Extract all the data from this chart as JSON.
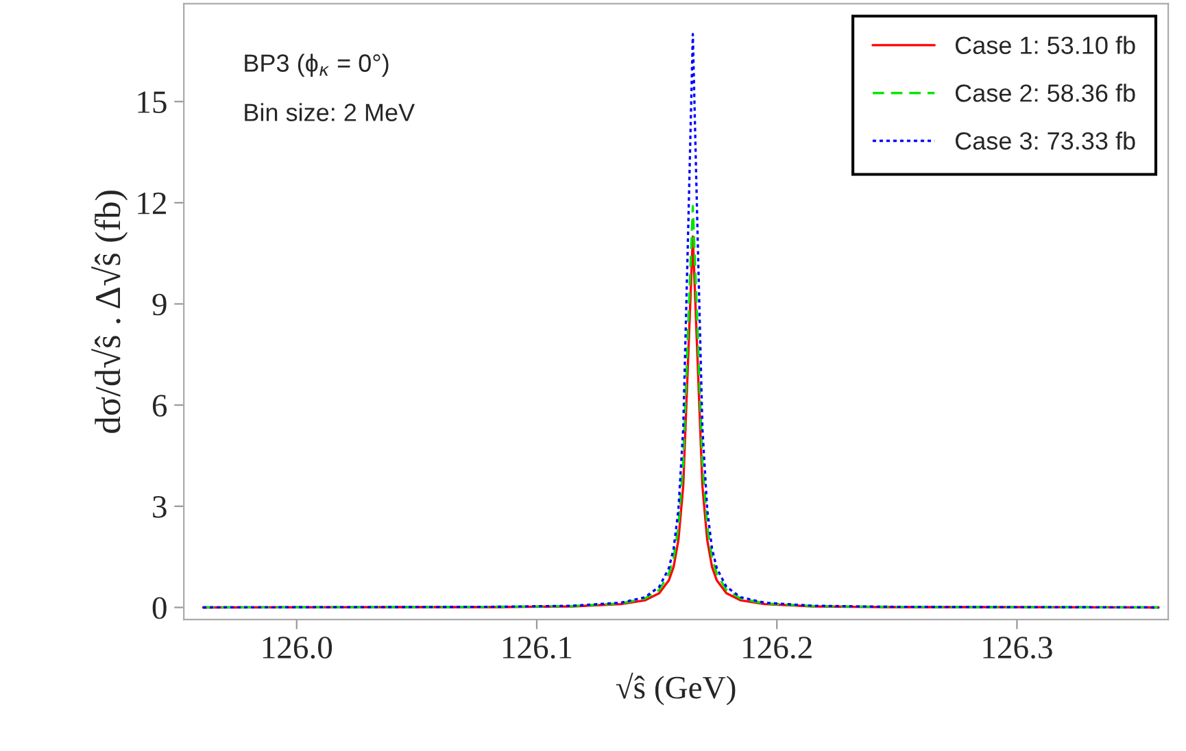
{
  "chart_data": {
    "type": "line",
    "xlabel": "√ŝ (GeV)",
    "ylabel": "dσ/d√ŝ . Δ√ŝ (fb)",
    "annotations": [
      "BP3 (ϕ$_{κ}$ = 0°)",
      "Bin size: 2 MeV"
    ],
    "x": [
      125.961,
      126.045,
      126.085,
      126.115,
      126.135,
      126.145,
      126.151,
      126.155,
      126.157,
      126.159,
      126.161,
      126.163,
      126.165,
      126.167,
      126.169,
      126.171,
      126.173,
      126.175,
      126.179,
      126.185,
      126.195,
      126.215,
      126.245,
      126.285,
      126.359
    ],
    "series": [
      {
        "name": "Case 1: 53.10 fb",
        "color": "#ff0000",
        "line_style": "solid",
        "values": [
          0.0,
          0.01,
          0.01,
          0.03,
          0.1,
          0.21,
          0.42,
          0.8,
          1.2,
          2.0,
          3.6,
          7.3,
          11.0,
          7.3,
          3.6,
          2.0,
          1.2,
          0.8,
          0.42,
          0.21,
          0.1,
          0.03,
          0.01,
          0.01,
          0.0
        ]
      },
      {
        "name": "Case 2: 58.36 fb",
        "color": "#00e600",
        "line_style": "dashed",
        "values": [
          0.0,
          0.01,
          0.02,
          0.04,
          0.12,
          0.26,
          0.52,
          0.99,
          1.47,
          2.4,
          4.3,
          8.2,
          11.9,
          8.2,
          4.3,
          2.4,
          1.47,
          0.99,
          0.52,
          0.26,
          0.12,
          0.04,
          0.02,
          0.01,
          0.0
        ]
      },
      {
        "name": "Case 3: 73.33 fb",
        "color": "#0000ff",
        "line_style": "dotted",
        "values": [
          0.0,
          0.01,
          0.02,
          0.05,
          0.14,
          0.3,
          0.61,
          1.16,
          1.74,
          2.9,
          5.3,
          11.0,
          17.0,
          11.0,
          5.3,
          2.9,
          1.74,
          1.16,
          0.61,
          0.3,
          0.14,
          0.05,
          0.02,
          0.01,
          0.0
        ]
      }
    ],
    "xlim": [
      125.953,
      126.363
    ],
    "ylim": [
      -0.36,
      17.9
    ],
    "xticks": [
      {
        "value": 126.0,
        "label": "126.0"
      },
      126.1,
      126.2,
      126.3
    ],
    "yticks": [
      0,
      3,
      6,
      9,
      12,
      15
    ],
    "grid": false,
    "legend": "top right",
    "marker": "none"
  }
}
